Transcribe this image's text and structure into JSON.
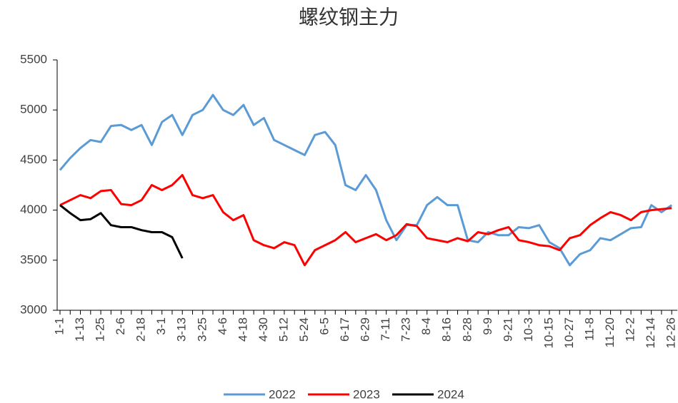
{
  "chart_data": {
    "type": "line",
    "title": "螺纹钢主力",
    "categories": [
      "1-1",
      null,
      "1-13",
      null,
      "1-25",
      null,
      "2-6",
      null,
      "2-18",
      null,
      "3-1",
      null,
      "3-13",
      null,
      "3-25",
      null,
      "4-6",
      null,
      "4-18",
      null,
      "4-30",
      null,
      "5-12",
      null,
      "5-24",
      null,
      "6-5",
      null,
      "6-17",
      null,
      "6-29",
      null,
      "7-11",
      null,
      "7-23",
      null,
      "8-4",
      null,
      "8-16",
      null,
      "8-28",
      null,
      "9-9",
      null,
      "9-21",
      null,
      "10-3",
      null,
      "10-15",
      null,
      "10-27",
      null,
      "11-8",
      null,
      "11-20",
      null,
      "12-2",
      null,
      "12-14",
      null,
      "12-26"
    ],
    "series": [
      {
        "name": "2022",
        "color": "#5b9bd5",
        "values": [
          4400,
          4520,
          4620,
          4700,
          4680,
          4840,
          4850,
          4800,
          4850,
          4650,
          4880,
          4950,
          4750,
          4950,
          5000,
          5150,
          5000,
          4950,
          5050,
          4850,
          4920,
          4700,
          4650,
          4600,
          4550,
          4750,
          4780,
          4650,
          4250,
          4200,
          4350,
          4200,
          3900,
          3700,
          3850,
          3850,
          4050,
          4130,
          4050,
          4050,
          3700,
          3680,
          3780,
          3750,
          3750,
          3830,
          3820,
          3850,
          3680,
          3620,
          3450,
          3560,
          3600,
          3720,
          3700,
          3760,
          3820,
          3830,
          4050,
          3980,
          4050
        ]
      },
      {
        "name": "2023",
        "color": "#ff0000",
        "values": [
          4050,
          4100,
          4150,
          4120,
          4190,
          4200,
          4060,
          4050,
          4100,
          4250,
          4200,
          4250,
          4350,
          4150,
          4120,
          4150,
          3980,
          3900,
          3950,
          3700,
          3650,
          3620,
          3680,
          3650,
          3450,
          3600,
          3650,
          3700,
          3780,
          3680,
          3720,
          3760,
          3700,
          3750,
          3860,
          3840,
          3720,
          3700,
          3680,
          3720,
          3690,
          3780,
          3760,
          3800,
          3830,
          3700,
          3680,
          3650,
          3640,
          3600,
          3720,
          3750,
          3850,
          3920,
          3980,
          3950,
          3900,
          3980,
          4000,
          4010,
          4020
        ]
      },
      {
        "name": "2024",
        "color": "#000000",
        "values": [
          4050,
          3970,
          3900,
          3910,
          3970,
          3850,
          3830,
          3830,
          3800,
          3780,
          3780,
          3730,
          3520,
          null,
          null,
          null,
          null,
          null,
          null,
          null,
          null,
          null,
          null,
          null,
          null,
          null,
          null,
          null,
          null,
          null,
          null,
          null,
          null,
          null,
          null,
          null,
          null,
          null,
          null,
          null,
          null,
          null,
          null,
          null,
          null,
          null,
          null,
          null,
          null,
          null,
          null,
          null,
          null,
          null,
          null,
          null,
          null,
          null,
          null,
          null,
          null
        ]
      }
    ],
    "ylim": [
      3000,
      5500
    ],
    "yticks": [
      3000,
      3500,
      4000,
      4500,
      5000,
      5500
    ],
    "legend": "bottom"
  }
}
